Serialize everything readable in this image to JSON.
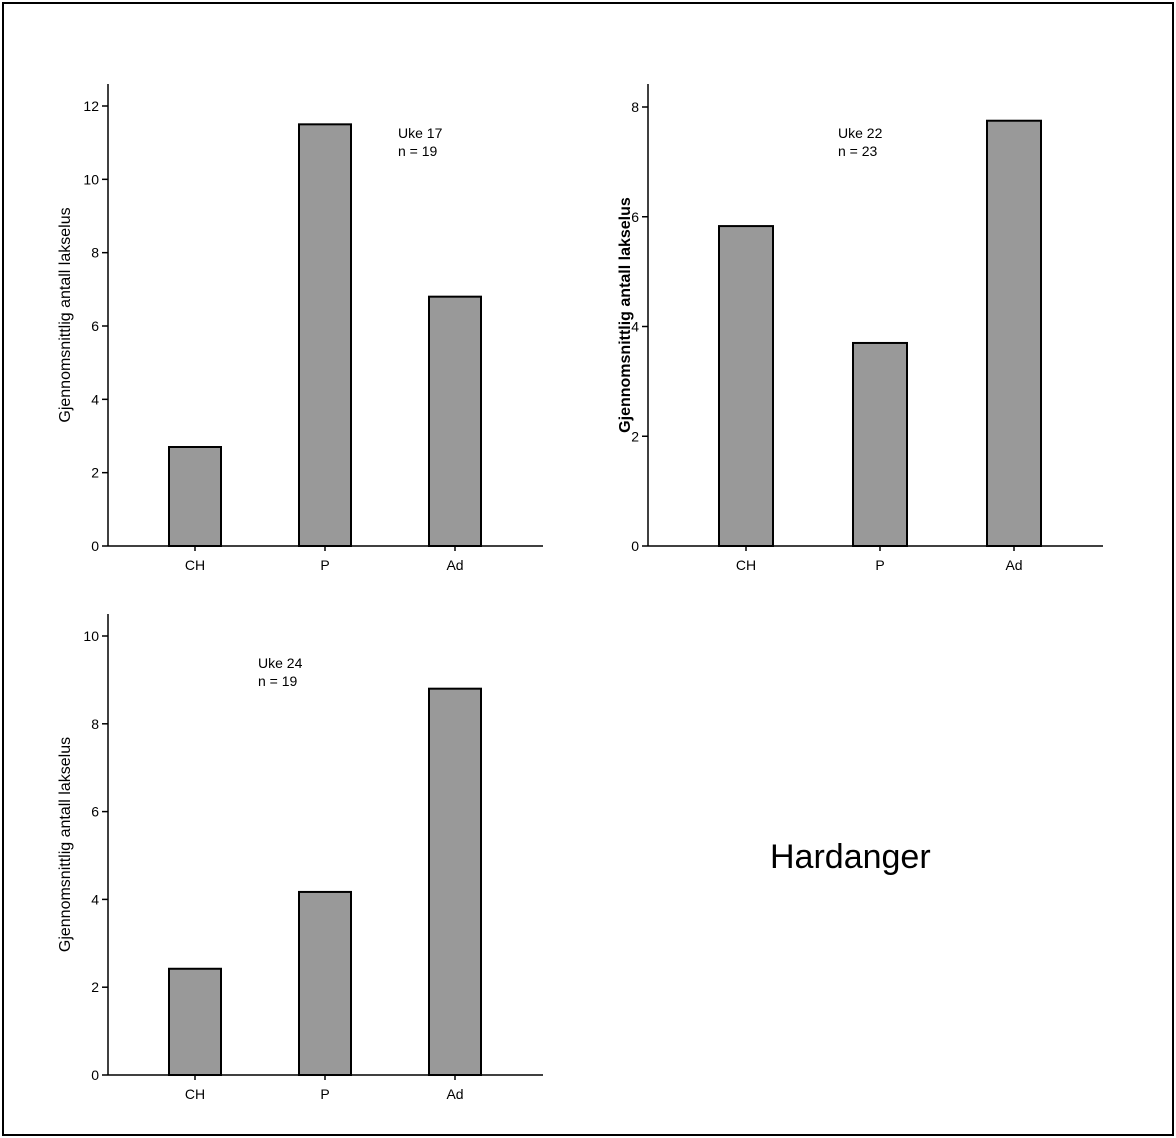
{
  "region_label": "Hardanger",
  "colors": {
    "bar_fill": "#999999",
    "bar_stroke": "#000000",
    "axis": "#000000"
  },
  "chart_data": [
    {
      "type": "bar",
      "categories": [
        "CH",
        "P",
        "Ad"
      ],
      "values": [
        2.7,
        11.5,
        6.8
      ],
      "ylabel": "Gjennomsnittlig antall lakselus",
      "ylim": [
        0,
        12
      ],
      "yticks": [
        0,
        2,
        4,
        6,
        8,
        10,
        12
      ],
      "annotation": [
        "Uke 17",
        "n = 19"
      ],
      "grid": false
    },
    {
      "type": "bar",
      "categories": [
        "CH",
        "P",
        "Ad"
      ],
      "values": [
        5.83,
        3.7,
        7.75
      ],
      "ylabel": "Gjennomsnittlig antall lakselus",
      "ylim": [
        0,
        8
      ],
      "yticks": [
        0,
        2,
        4,
        6,
        8
      ],
      "annotation": [
        "Uke 22",
        "n = 23"
      ],
      "grid": false
    },
    {
      "type": "bar",
      "categories": [
        "CH",
        "P",
        "Ad"
      ],
      "values": [
        2.42,
        4.17,
        8.8
      ],
      "ylabel": "Gjennomsnittlig antall lakselus",
      "ylim": [
        0,
        10
      ],
      "yticks": [
        0,
        2,
        4,
        6,
        8,
        10
      ],
      "annotation": [
        "Uke 24",
        "n = 19"
      ],
      "grid": false
    }
  ]
}
